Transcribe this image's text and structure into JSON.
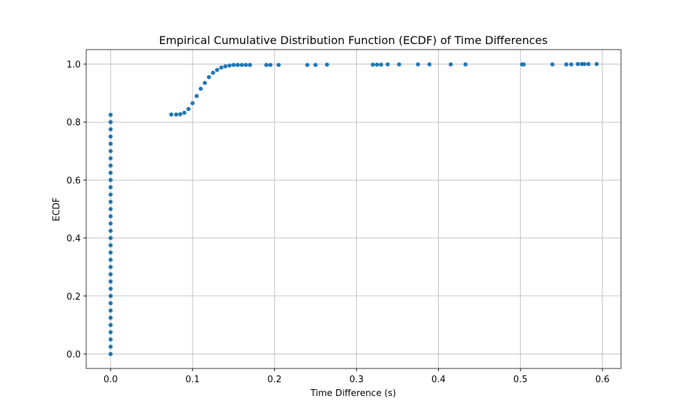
{
  "chart_data": {
    "type": "scatter",
    "title": "Empirical Cumulative Distribution Function (ECDF) of Time Differences",
    "x_label": "Time Difference (s)",
    "y_label": "ECDF",
    "series": [
      {
        "color": "#1f77b4",
        "x": [
          0,
          0,
          0,
          0,
          0,
          0,
          0,
          0,
          0,
          0,
          0,
          0,
          0,
          0,
          0,
          0,
          0,
          0,
          0,
          0,
          0,
          0,
          0,
          0,
          0,
          0,
          0,
          0,
          0,
          0,
          0,
          0,
          0,
          0,
          0.074,
          0.08,
          0.085,
          0.09,
          0.095,
          0.1,
          0.105,
          0.11,
          0.115,
          0.12,
          0.125,
          0.13,
          0.135,
          0.14,
          0.145,
          0.15,
          0.155,
          0.16,
          0.165,
          0.17,
          0.19,
          0.195,
          0.205,
          0.24,
          0.25,
          0.264,
          0.32,
          0.325,
          0.33,
          0.338,
          0.352,
          0.375,
          0.389,
          0.415,
          0.433,
          0.502,
          0.504,
          0.539,
          0.556,
          0.562,
          0.57,
          0.575,
          0.578,
          0.583,
          0.593
        ],
        "y": [
          0,
          0.025,
          0.05,
          0.075,
          0.1,
          0.125,
          0.15,
          0.175,
          0.2,
          0.225,
          0.25,
          0.275,
          0.3,
          0.325,
          0.35,
          0.375,
          0.4,
          0.425,
          0.45,
          0.475,
          0.5,
          0.525,
          0.55,
          0.575,
          0.6,
          0.625,
          0.65,
          0.675,
          0.7,
          0.725,
          0.75,
          0.775,
          0.8,
          0.825,
          0.826,
          0.826,
          0.827,
          0.832,
          0.845,
          0.865,
          0.89,
          0.915,
          0.935,
          0.955,
          0.97,
          0.98,
          0.988,
          0.992,
          0.995,
          0.997,
          0.997,
          0.997,
          0.997,
          0.997,
          0.997,
          0.997,
          0.997,
          0.997,
          0.997,
          0.998,
          0.998,
          0.998,
          0.998,
          0.999,
          0.999,
          0.999,
          0.999,
          0.999,
          0.999,
          0.999,
          0.999,
          0.999,
          0.999,
          0.999,
          1.0,
          1.0,
          1.0,
          1.0,
          1.0
        ]
      }
    ],
    "xlim": [
      -0.0297,
      0.6227
    ],
    "ylim": [
      -0.05,
      1.05
    ],
    "xticks": [
      {
        "value": 0,
        "label": "0.0"
      },
      0.1,
      0.2,
      0.3,
      0.4,
      0.5,
      0.6
    ],
    "yticks": [
      {
        "value": 0,
        "label": "0.0"
      },
      0.2,
      0.4,
      0.6,
      0.8,
      {
        "value": 1,
        "label": "1.0"
      }
    ],
    "grid": true
  }
}
